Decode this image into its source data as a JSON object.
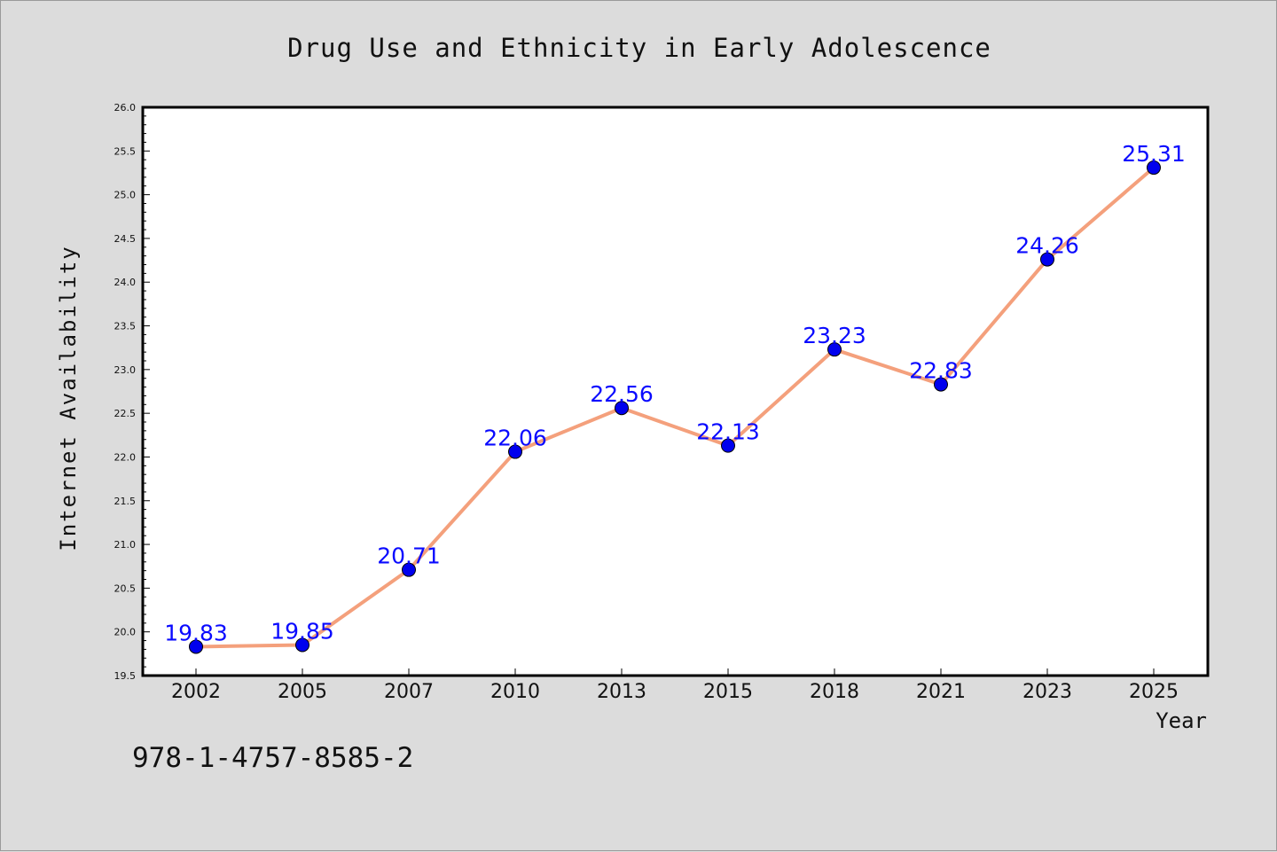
{
  "footer": {
    "isbn": "978-1-4757-8585-2"
  },
  "chart_data": {
    "type": "line",
    "title": "Drug Use and Ethnicity in Early Adolescence",
    "xlabel": "Year",
    "ylabel": "Internet Availability",
    "categories": [
      "2002",
      "2005",
      "2007",
      "2010",
      "2013",
      "2015",
      "2018",
      "2021",
      "2023",
      "2025"
    ],
    "series": [
      {
        "values": [
          19.83,
          19.85,
          20.71,
          22.06,
          22.56,
          22.13,
          23.23,
          22.83,
          24.26,
          25.31
        ]
      }
    ],
    "data_labels": [
      "19.83",
      "19.85",
      "20.71",
      "22.06",
      "22.56",
      "22.13",
      "23.23",
      "22.83",
      "24.26",
      "25.31"
    ],
    "yticks": [
      "19.5",
      "20.0",
      "20.5",
      "21.0",
      "21.5",
      "22.0",
      "22.5",
      "23.0",
      "23.5",
      "24.0",
      "24.5",
      "25.0",
      "25.5",
      "26.0"
    ],
    "ylim": [
      19.5,
      26.0
    ],
    "grid": false,
    "colors": {
      "line": "#f4a07c",
      "marker": "#0000ee",
      "label": "#0a0aff",
      "background": "#dcdcdc",
      "plot": "#ffffff"
    }
  }
}
